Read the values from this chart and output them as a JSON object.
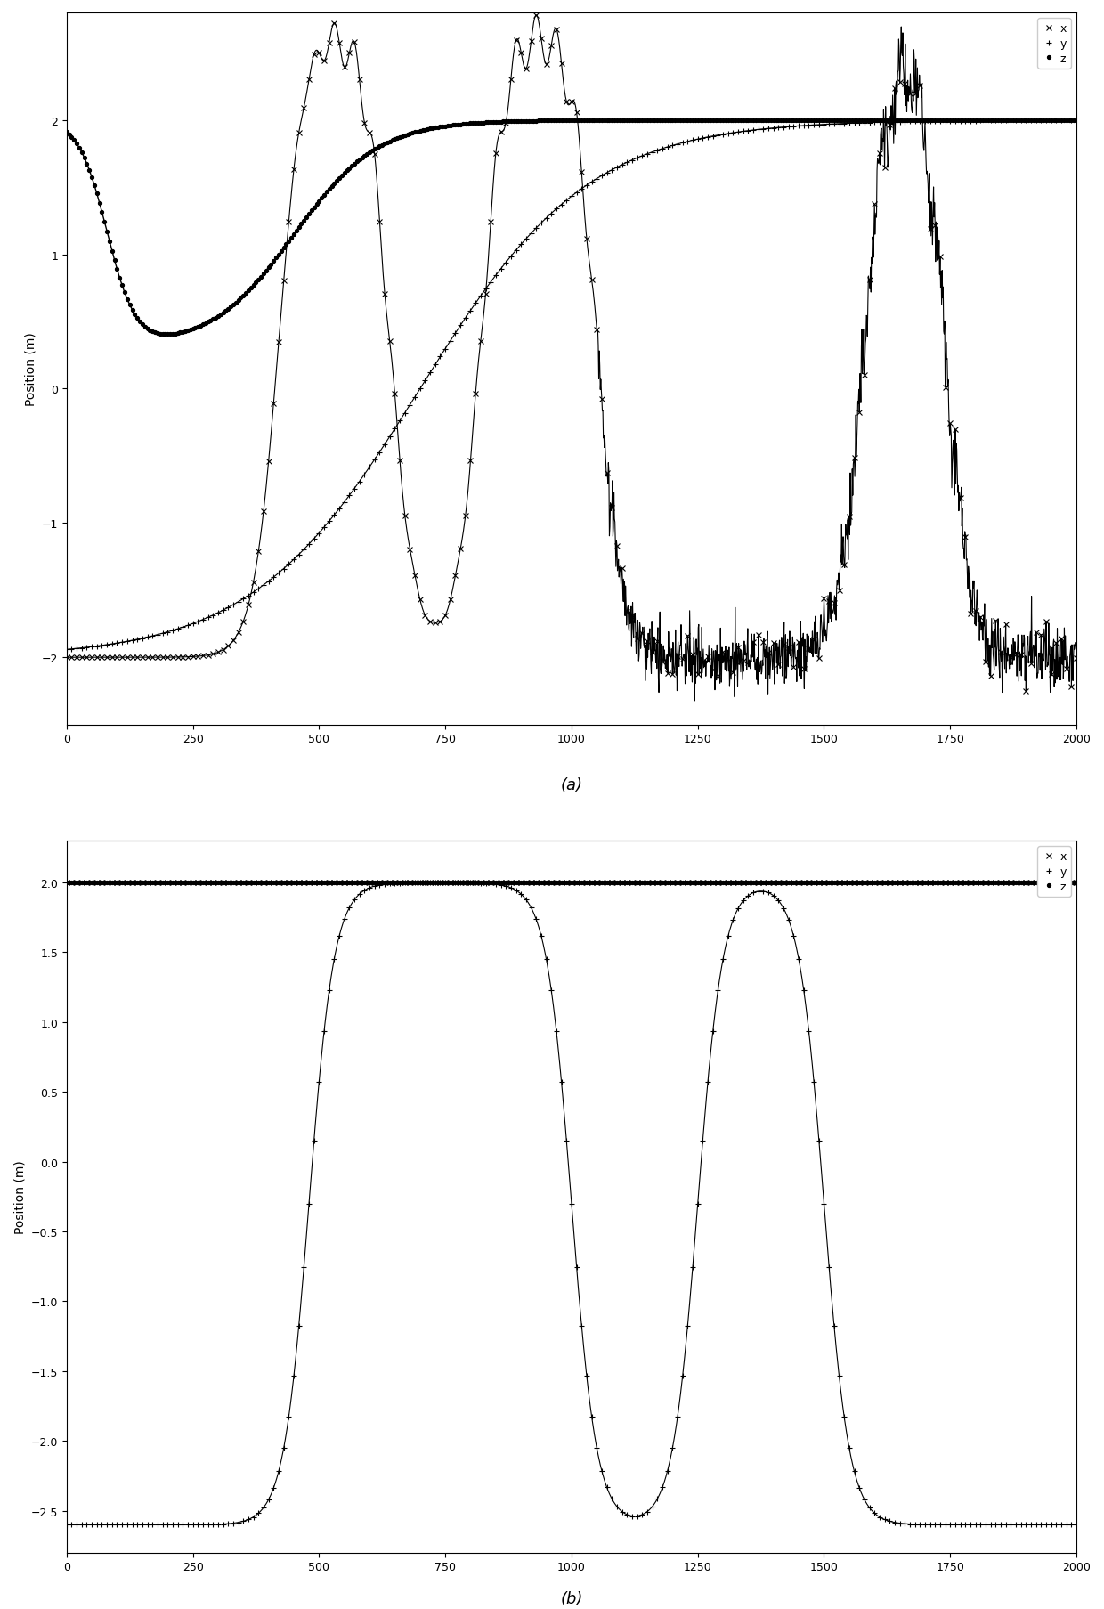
{
  "xlim": [
    0,
    2000
  ],
  "ylim_a": [
    -2.5,
    2.8
  ],
  "ylim_b": [
    -2.8,
    2.3
  ],
  "ylabel": "Position (m)",
  "xticks": [
    0,
    250,
    500,
    750,
    1000,
    1250,
    1500,
    1750,
    2000
  ],
  "yticks_a": [
    -2,
    -1,
    0,
    1,
    2
  ],
  "yticks_b": [
    -2.5,
    -2.0,
    -1.5,
    -1.0,
    -0.5,
    0.0,
    0.5,
    1.0,
    1.5,
    2.0
  ],
  "legend_labels": [
    "x",
    "y",
    "z"
  ],
  "label_a": "(a)",
  "label_b": "(b)",
  "figsize": [
    12.4,
    18.08
  ],
  "dpi": 100
}
